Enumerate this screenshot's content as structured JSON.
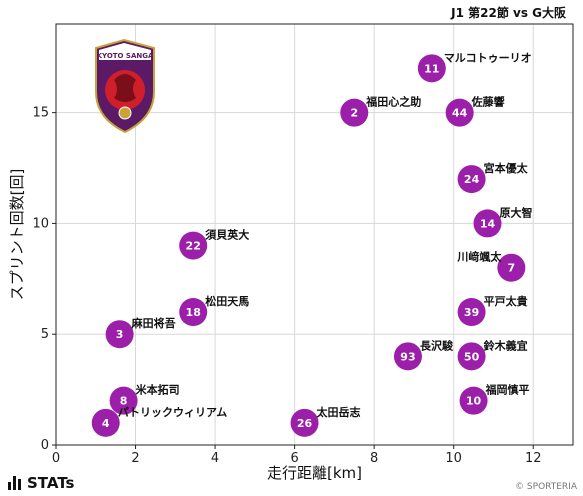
{
  "header": {
    "title": "J1 第22節 vs G大阪"
  },
  "footer": {
    "brand": "STATs",
    "copyright": "© SPORTERIA"
  },
  "badge": {
    "top_text": "KYOTO SANGA",
    "colors": {
      "crest_bg": "#5a1a66",
      "crest_red": "#d01e2a",
      "crest_gold": "#c9a23a"
    }
  },
  "chart_data": {
    "type": "scatter",
    "xlabel": "走行距離[km]",
    "ylabel": "スプリント回数[回]",
    "xlim": [
      0,
      13
    ],
    "ylim": [
      0,
      19
    ],
    "xticks": [
      0,
      2,
      4,
      6,
      8,
      10,
      12
    ],
    "yticks": [
      0,
      5,
      10,
      15
    ],
    "grid": true,
    "marker_color": "#9b1fa8",
    "points": [
      {
        "num": "11",
        "name": "マルコトゥーリオ",
        "x": 9.45,
        "y": 17
      },
      {
        "num": "2",
        "name": "福田心之助",
        "x": 7.5,
        "y": 15
      },
      {
        "num": "44",
        "name": "佐藤響",
        "x": 10.15,
        "y": 15
      },
      {
        "num": "24",
        "name": "宮本優太",
        "x": 10.45,
        "y": 12
      },
      {
        "num": "14",
        "name": "原大智",
        "x": 10.85,
        "y": 10
      },
      {
        "num": "22",
        "name": "須貝英大",
        "x": 3.45,
        "y": 9
      },
      {
        "num": "7",
        "name": "川﨑颯太",
        "x": 11.45,
        "y": 8
      },
      {
        "num": "18",
        "name": "松田天馬",
        "x": 3.45,
        "y": 6
      },
      {
        "num": "39",
        "name": "平戸太貴",
        "x": 10.45,
        "y": 6
      },
      {
        "num": "3",
        "name": "麻田将吾",
        "x": 1.6,
        "y": 5
      },
      {
        "num": "93",
        "name": "長沢駿",
        "x": 8.85,
        "y": 4
      },
      {
        "num": "50",
        "name": "鈴木義宜",
        "x": 10.45,
        "y": 4
      },
      {
        "num": "8",
        "name": "米本拓司",
        "x": 1.7,
        "y": 2
      },
      {
        "num": "10",
        "name": "福岡慎平",
        "x": 10.5,
        "y": 2
      },
      {
        "num": "4",
        "name": "パトリックウィリアム",
        "x": 1.25,
        "y": 1
      },
      {
        "num": "26",
        "name": "太田岳志",
        "x": 6.25,
        "y": 1
      }
    ]
  }
}
